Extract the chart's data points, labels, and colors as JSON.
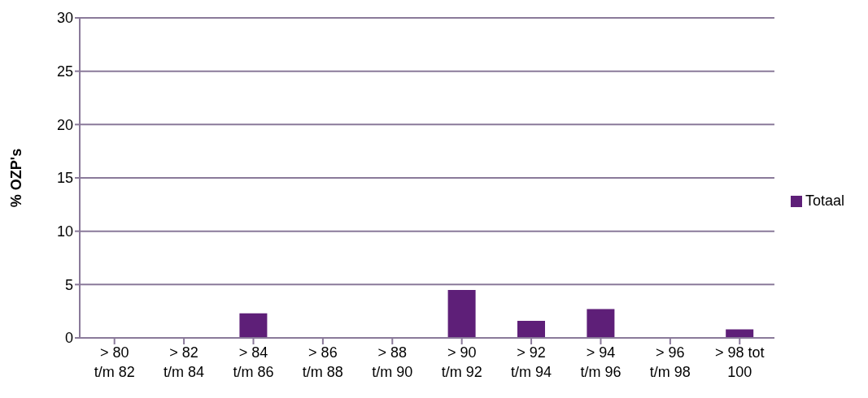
{
  "chart_data": {
    "type": "bar",
    "ylabel": "% OZP's",
    "categories": [
      "> 80 t/m 82",
      "> 82 t/m 84",
      "> 84 t/m 86",
      "> 86 t/m 88",
      "> 88 t/m 90",
      "> 90 t/m 92",
      "> 92 t/m 94",
      "> 94 t/m 96",
      "> 96 t/m 98",
      "> 98 tot 100"
    ],
    "series": [
      {
        "name": "Totaal",
        "color": "#5e1f78",
        "values": [
          0,
          0,
          2.3,
          0,
          0,
          4.5,
          1.6,
          2.7,
          0,
          0.8
        ]
      }
    ],
    "ylim": [
      0,
      30
    ],
    "yticks": [
      0,
      5,
      10,
      15,
      20,
      25,
      30
    ],
    "grid": "y",
    "legend": "right"
  }
}
